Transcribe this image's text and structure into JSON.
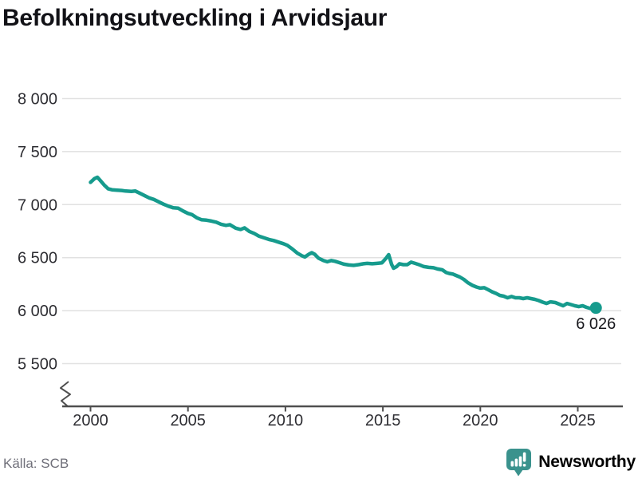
{
  "title": "Befolkningsutveckling i Arvidsjaur",
  "source": "Källa: SCB",
  "branding": {
    "name": "Newsworthy",
    "icon": "newsworthy-logo-icon",
    "color": "#3A928D"
  },
  "colors": {
    "line": "#169B8D",
    "end_dot": "#169B8D",
    "grid": "#E1E1E1",
    "axis": "#4F4F4F",
    "tick_text": "#2E2E33",
    "title_text": "#121217",
    "muted_text": "#70707A",
    "background": "#FFFFFF"
  },
  "chart_data": {
    "type": "line",
    "title": "Befolkningsutveckling i Arvidsjaur",
    "xlabel": "",
    "ylabel": "",
    "legend": "none",
    "grid": "horizontal-only",
    "y_axis_break": true,
    "xlim": [
      1998.5,
      2027.3
    ],
    "ylim": [
      5500,
      8000
    ],
    "x_ticks": [
      2000,
      2005,
      2010,
      2015,
      2020,
      2025
    ],
    "y_ticks": [
      {
        "value": 8000,
        "label": "8 000"
      },
      {
        "value": 7500,
        "label": "7 500"
      },
      {
        "value": 7000,
        "label": "7 000"
      },
      {
        "value": 6500,
        "label": "6 500"
      },
      {
        "value": 6000,
        "label": "6 000"
      },
      {
        "value": 5500,
        "label": "5 500"
      }
    ],
    "end_label": "6 026",
    "end_point": {
      "year": 2025.93,
      "value": 6026
    },
    "series": [
      {
        "name": "Folkmängd",
        "color": "#169B8D",
        "points": [
          [
            2000.0,
            7210
          ],
          [
            2000.2,
            7245
          ],
          [
            2000.35,
            7258
          ],
          [
            2000.5,
            7228
          ],
          [
            2000.7,
            7185
          ],
          [
            2000.9,
            7150
          ],
          [
            2001.1,
            7140
          ],
          [
            2001.3,
            7137
          ],
          [
            2001.6,
            7133
          ],
          [
            2001.8,
            7128
          ],
          [
            2002.1,
            7124
          ],
          [
            2002.3,
            7128
          ],
          [
            2002.5,
            7110
          ],
          [
            2002.8,
            7083
          ],
          [
            2003.0,
            7064
          ],
          [
            2003.25,
            7049
          ],
          [
            2003.5,
            7026
          ],
          [
            2003.75,
            7004
          ],
          [
            2004.0,
            6985
          ],
          [
            2004.25,
            6970
          ],
          [
            2004.5,
            6966
          ],
          [
            2004.75,
            6940
          ],
          [
            2005.0,
            6917
          ],
          [
            2005.2,
            6906
          ],
          [
            2005.45,
            6876
          ],
          [
            2005.7,
            6857
          ],
          [
            2005.95,
            6853
          ],
          [
            2006.2,
            6845
          ],
          [
            2006.45,
            6834
          ],
          [
            2006.7,
            6815
          ],
          [
            2006.95,
            6804
          ],
          [
            2007.15,
            6811
          ],
          [
            2007.45,
            6778
          ],
          [
            2007.7,
            6766
          ],
          [
            2007.9,
            6781
          ],
          [
            2008.15,
            6747
          ],
          [
            2008.4,
            6728
          ],
          [
            2008.65,
            6702
          ],
          [
            2008.9,
            6687
          ],
          [
            2009.15,
            6672
          ],
          [
            2009.4,
            6661
          ],
          [
            2009.65,
            6646
          ],
          [
            2009.9,
            6631
          ],
          [
            2010.1,
            6616
          ],
          [
            2010.35,
            6582
          ],
          [
            2010.6,
            6544
          ],
          [
            2010.85,
            6517
          ],
          [
            2011.0,
            6506
          ],
          [
            2011.2,
            6532
          ],
          [
            2011.35,
            6547
          ],
          [
            2011.5,
            6532
          ],
          [
            2011.7,
            6495
          ],
          [
            2011.95,
            6472
          ],
          [
            2012.15,
            6461
          ],
          [
            2012.35,
            6472
          ],
          [
            2012.55,
            6465
          ],
          [
            2012.75,
            6453
          ],
          [
            2013.0,
            6438
          ],
          [
            2013.25,
            6431
          ],
          [
            2013.5,
            6427
          ],
          [
            2013.75,
            6434
          ],
          [
            2014.0,
            6442
          ],
          [
            2014.2,
            6446
          ],
          [
            2014.45,
            6442
          ],
          [
            2014.7,
            6446
          ],
          [
            2014.95,
            6450
          ],
          [
            2015.15,
            6492
          ],
          [
            2015.3,
            6528
          ],
          [
            2015.45,
            6435
          ],
          [
            2015.55,
            6400
          ],
          [
            2015.7,
            6415
          ],
          [
            2015.85,
            6442
          ],
          [
            2016.05,
            6434
          ],
          [
            2016.25,
            6434
          ],
          [
            2016.45,
            6457
          ],
          [
            2016.65,
            6446
          ],
          [
            2016.9,
            6431
          ],
          [
            2017.1,
            6416
          ],
          [
            2017.35,
            6408
          ],
          [
            2017.6,
            6404
          ],
          [
            2017.8,
            6393
          ],
          [
            2018.05,
            6385
          ],
          [
            2018.25,
            6359
          ],
          [
            2018.4,
            6351
          ],
          [
            2018.6,
            6344
          ],
          [
            2018.75,
            6332
          ],
          [
            2018.95,
            6317
          ],
          [
            2019.15,
            6295
          ],
          [
            2019.35,
            6265
          ],
          [
            2019.6,
            6238
          ],
          [
            2019.8,
            6223
          ],
          [
            2020.0,
            6212
          ],
          [
            2020.2,
            6216
          ],
          [
            2020.4,
            6197
          ],
          [
            2020.6,
            6178
          ],
          [
            2020.8,
            6163
          ],
          [
            2021.0,
            6144
          ],
          [
            2021.2,
            6136
          ],
          [
            2021.4,
            6121
          ],
          [
            2021.6,
            6133
          ],
          [
            2021.8,
            6121
          ],
          [
            2022.0,
            6121
          ],
          [
            2022.2,
            6114
          ],
          [
            2022.4,
            6121
          ],
          [
            2022.6,
            6114
          ],
          [
            2022.8,
            6106
          ],
          [
            2023.0,
            6095
          ],
          [
            2023.2,
            6080
          ],
          [
            2023.4,
            6068
          ],
          [
            2023.6,
            6083
          ],
          [
            2023.85,
            6076
          ],
          [
            2024.05,
            6061
          ],
          [
            2024.25,
            6046
          ],
          [
            2024.45,
            6068
          ],
          [
            2024.65,
            6057
          ],
          [
            2024.85,
            6046
          ],
          [
            2025.05,
            6038
          ],
          [
            2025.25,
            6046
          ],
          [
            2025.45,
            6031
          ],
          [
            2025.7,
            6018
          ],
          [
            2025.93,
            6026
          ]
        ]
      }
    ]
  }
}
